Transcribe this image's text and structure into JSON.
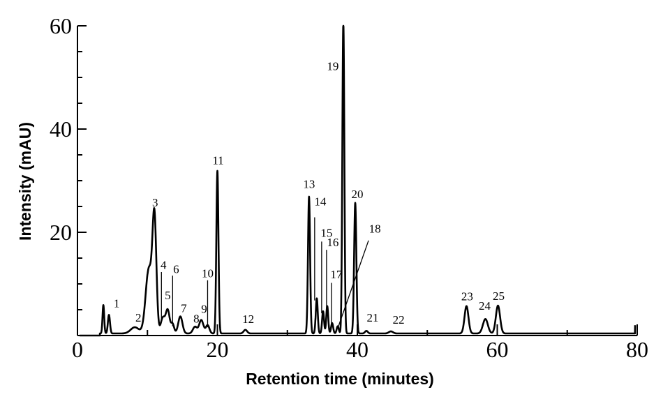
{
  "chart_data": {
    "type": "line",
    "title": "",
    "xlabel": "Retention time (minutes)",
    "ylabel": "Intensity (mAU)",
    "xlim": [
      0,
      80
    ],
    "ylim": [
      0,
      60
    ],
    "x_ticks": [
      0,
      20,
      40,
      60,
      80
    ],
    "y_ticks": [
      20,
      40,
      60
    ],
    "grid": false,
    "legend": "none",
    "line_color": "#000000",
    "baseline": 0.4,
    "peaks": [
      {
        "label": "1",
        "x": 3.7,
        "y": 5.5,
        "w": 0.12
      },
      {
        "label": "",
        "x": 4.5,
        "y": 3.6,
        "w": 0.15
      },
      {
        "label": "2",
        "x": 8.2,
        "y": 1.2,
        "w": 0.6
      },
      {
        "label": "",
        "x": 10.2,
        "y": 12.5,
        "w": 0.45
      },
      {
        "label": "3",
        "x": 11.0,
        "y": 21.5,
        "w": 0.28
      },
      {
        "label": "4",
        "x": 12.2,
        "y": 3.0,
        "w": 0.3
      },
      {
        "label": "5",
        "x": 12.9,
        "y": 4.5,
        "w": 0.28
      },
      {
        "label": "6",
        "x": 13.6,
        "y": 1.8,
        "w": 0.22
      },
      {
        "label": "7",
        "x": 14.7,
        "y": 3.3,
        "w": 0.3
      },
      {
        "label": "8",
        "x": 16.8,
        "y": 1.3,
        "w": 0.3
      },
      {
        "label": "9",
        "x": 17.7,
        "y": 2.6,
        "w": 0.3
      },
      {
        "label": "10",
        "x": 18.6,
        "y": 1.6,
        "w": 0.25
      },
      {
        "label": "11",
        "x": 20.0,
        "y": 31.5,
        "w": 0.15
      },
      {
        "label": "12",
        "x": 24.0,
        "y": 0.7,
        "w": 0.25
      },
      {
        "label": "13",
        "x": 33.1,
        "y": 26.5,
        "w": 0.15
      },
      {
        "label": "14",
        "x": 34.2,
        "y": 6.8,
        "w": 0.14
      },
      {
        "label": "15",
        "x": 35.1,
        "y": 4.3,
        "w": 0.14
      },
      {
        "label": "16",
        "x": 35.7,
        "y": 5.3,
        "w": 0.14
      },
      {
        "label": "17",
        "x": 36.4,
        "y": 2.0,
        "w": 0.15
      },
      {
        "label": "18",
        "x": 37.2,
        "y": 1.4,
        "w": 0.15
      },
      {
        "label": "19",
        "x": 38.0,
        "y": 60.0,
        "w": 0.14
      },
      {
        "label": "20",
        "x": 39.7,
        "y": 25.3,
        "w": 0.16
      },
      {
        "label": "21",
        "x": 41.3,
        "y": 0.5,
        "w": 0.2
      },
      {
        "label": "22",
        "x": 44.8,
        "y": 0.4,
        "w": 0.3
      },
      {
        "label": "23",
        "x": 55.6,
        "y": 5.3,
        "w": 0.28
      },
      {
        "label": "24",
        "x": 58.3,
        "y": 2.8,
        "w": 0.35
      },
      {
        "label": "25",
        "x": 60.1,
        "y": 5.4,
        "w": 0.3
      }
    ],
    "annotations": [
      {
        "text": "1",
        "x": 5.6,
        "y": 5.5
      },
      {
        "text": "2",
        "x": 8.7,
        "y": 2.7
      },
      {
        "text": "3",
        "x": 11.1,
        "y": 25.0
      },
      {
        "text": "4",
        "x": 12.3,
        "y": 12.9
      },
      {
        "text": "5",
        "x": 12.9,
        "y": 7.0
      },
      {
        "text": "6",
        "x": 14.1,
        "y": 12.1
      },
      {
        "text": "7",
        "x": 15.2,
        "y": 4.5
      },
      {
        "text": "8",
        "x": 17.0,
        "y": 2.5
      },
      {
        "text": "9",
        "x": 18.1,
        "y": 4.4
      },
      {
        "text": "10",
        "x": 18.6,
        "y": 11.3
      },
      {
        "text": "11",
        "x": 20.1,
        "y": 33.2
      },
      {
        "text": "12",
        "x": 24.4,
        "y": 2.4
      },
      {
        "text": "13",
        "x": 33.1,
        "y": 28.6
      },
      {
        "text": "14",
        "x": 34.7,
        "y": 25.2
      },
      {
        "text": "15",
        "x": 35.6,
        "y": 19.1
      },
      {
        "text": "16",
        "x": 36.5,
        "y": 17.3
      },
      {
        "text": "17",
        "x": 37.0,
        "y": 11.1
      },
      {
        "text": "18",
        "x": 42.5,
        "y": 19.9
      },
      {
        "text": "19",
        "x": 36.5,
        "y": 51.4
      },
      {
        "text": "20",
        "x": 40.0,
        "y": 26.6
      },
      {
        "text": "21",
        "x": 42.2,
        "y": 2.7
      },
      {
        "text": "22",
        "x": 45.9,
        "y": 2.3
      },
      {
        "text": "23",
        "x": 55.7,
        "y": 6.8
      },
      {
        "text": "24",
        "x": 58.2,
        "y": 5.0
      },
      {
        "text": "25",
        "x": 60.2,
        "y": 6.9
      }
    ],
    "leader_lines": [
      {
        "from": [
          33.9,
          22.9
        ],
        "to": [
          33.9,
          6.8
        ]
      },
      {
        "from": [
          34.9,
          18.2
        ],
        "to": [
          34.9,
          4.3
        ]
      },
      {
        "from": [
          35.6,
          16.6
        ],
        "to": [
          35.6,
          5.3
        ]
      },
      {
        "from": [
          36.3,
          10.2
        ],
        "to": [
          36.3,
          2.0
        ]
      },
      {
        "from": [
          41.6,
          18.4
        ],
        "to": [
          37.2,
          1.4
        ]
      },
      {
        "from": [
          12.0,
          12.3
        ],
        "to": [
          12.0,
          3.0
        ]
      },
      {
        "from": [
          13.6,
          11.6
        ],
        "to": [
          13.6,
          1.8
        ]
      },
      {
        "from": [
          18.6,
          10.7
        ],
        "to": [
          18.6,
          1.6
        ]
      }
    ]
  }
}
